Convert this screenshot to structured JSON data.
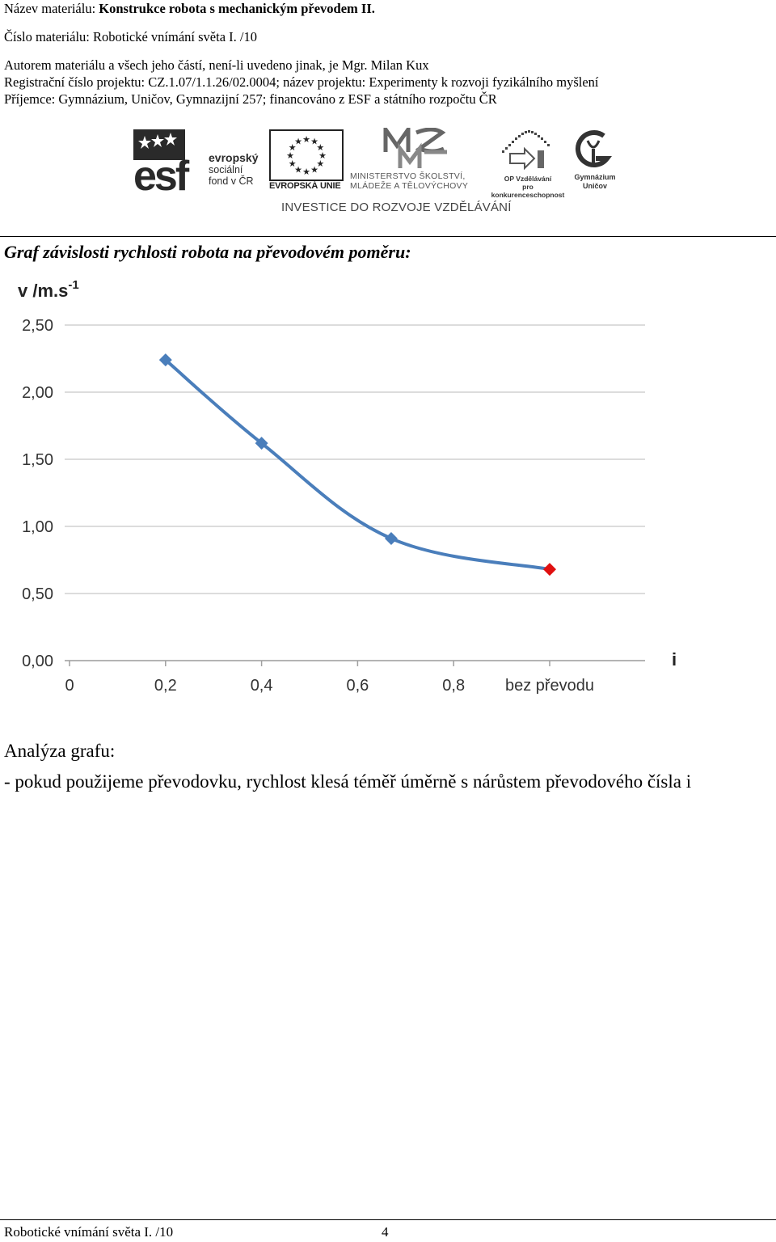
{
  "header": {
    "line1_label": "Název materiálu: ",
    "line1_value": "Konstrukce robota s mechanickým převodem II.",
    "line2": "Číslo materiálu: Robotické vnímání světa I. /10",
    "line3": "Autorem materiálu a všech jeho částí, není-li uvedeno jinak, je Mgr. Milan Kux",
    "line4": "Registrační číslo projektu: CZ.1.07/1.1.26/02.0004; název projektu: Experimenty k rozvoji fyzikálního myšlení",
    "line5": "Příjemce: Gymnázium, Uničov, Gymnazijní 257; financováno z ESF a státního rozpočtu ČR"
  },
  "logos": {
    "esf_l1": "evropský",
    "esf_l2": "sociální",
    "esf_l3": "fond v ČR",
    "eu": "EVROPSKÁ UNIE",
    "msmt_l1": "MINISTERSTVO ŠKOLSTVÍ,",
    "msmt_l2": "MLÁDEŽE A TĚLOVÝCHOVY",
    "op_l1": "OP Vzdělávání",
    "op_l2": "pro konkurenceschopnost",
    "gym_l1": "Gymnázium",
    "gym_l2": "Uničov",
    "investice": "INVESTICE DO ROZVOJE VZDĚLÁVÁNÍ",
    "colors": {
      "esf_dark": "#2a2a2a",
      "eu_star": "#222222"
    }
  },
  "section_title": "Graf závislosti rychlosti robota na převodovém poměru:",
  "chart_data": {
    "type": "line",
    "ylabel": "v /m.s",
    "ylabel_sup": "-1",
    "xlabel": "i",
    "ylim": [
      0,
      2.5
    ],
    "yticks": [
      "0,00",
      "0,50",
      "1,00",
      "1,50",
      "2,00",
      "2,50"
    ],
    "yticks_values": [
      0,
      0.5,
      1.0,
      1.5,
      2.0,
      2.5
    ],
    "xticks": [
      "0",
      "0,2",
      "0,4",
      "0,6",
      "0,8",
      "bez převodu"
    ],
    "xticks_values": [
      0,
      0.2,
      0.4,
      0.6,
      0.8,
      1.0
    ],
    "x": [
      0.2,
      0.4,
      0.67,
      1.0
    ],
    "y": [
      2.24,
      1.62,
      0.91,
      0.68
    ],
    "grid": true,
    "line_color": "#4a7ebb",
    "highlight_color": "#e01010",
    "highlight_index": 3
  },
  "analysis": {
    "title": "Analýza grafu:",
    "text": "- pokud použijeme převodovku, rychlost klesá téměř úměrně s nárůstem převodového čísla i"
  },
  "footer": {
    "left": "Robotické vnímání světa I. /10",
    "page": "4"
  }
}
